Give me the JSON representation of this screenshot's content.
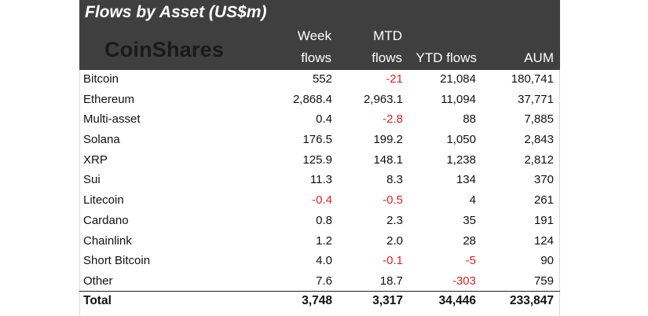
{
  "header": {
    "title": "Flows by Asset (US$m)",
    "logo": "CoinShares",
    "columns": {
      "week_top": "Week",
      "week_bottom": "flows",
      "mtd_top": "MTD",
      "mtd_bottom": "flows",
      "ytd": "YTD flows",
      "aum": "AUM"
    }
  },
  "colors": {
    "header_bg": "#3f3f3f",
    "negative": "#e02020",
    "text": "#111111"
  },
  "chart_data": {
    "type": "table",
    "title": "Flows by Asset (US$m)",
    "columns": [
      "Week flows",
      "MTD flows",
      "YTD flows",
      "AUM"
    ],
    "rows": [
      {
        "asset": "Bitcoin",
        "week": "552",
        "mtd": "-21",
        "ytd": "21,084",
        "aum": "180,741"
      },
      {
        "asset": "Ethereum",
        "week": "2,868.4",
        "mtd": "2,963.1",
        "ytd": "11,094",
        "aum": "37,771"
      },
      {
        "asset": "Multi-asset",
        "week": "0.4",
        "mtd": "-2.8",
        "ytd": "88",
        "aum": "7,885"
      },
      {
        "asset": "Solana",
        "week": "176.5",
        "mtd": "199.2",
        "ytd": "1,050",
        "aum": "2,843"
      },
      {
        "asset": "XRP",
        "week": "125.9",
        "mtd": "148.1",
        "ytd": "1,238",
        "aum": "2,812"
      },
      {
        "asset": "Sui",
        "week": "11.3",
        "mtd": "8.3",
        "ytd": "134",
        "aum": "370"
      },
      {
        "asset": "Litecoin",
        "week": "-0.4",
        "mtd": "-0.5",
        "ytd": "4",
        "aum": "261"
      },
      {
        "asset": "Cardano",
        "week": "0.8",
        "mtd": "2.3",
        "ytd": "35",
        "aum": "191"
      },
      {
        "asset": "Chainlink",
        "week": "1.2",
        "mtd": "2.0",
        "ytd": "28",
        "aum": "124"
      },
      {
        "asset": "Short Bitcoin",
        "week": "4.0",
        "mtd": "-0.1",
        "ytd": "-5",
        "aum": "90"
      },
      {
        "asset": "Other",
        "week": "7.6",
        "mtd": "18.7",
        "ytd": "-303",
        "aum": "759"
      }
    ],
    "total": {
      "asset": "Total",
      "week": "3,748",
      "mtd": "3,317",
      "ytd": "34,446",
      "aum": "233,847"
    }
  }
}
